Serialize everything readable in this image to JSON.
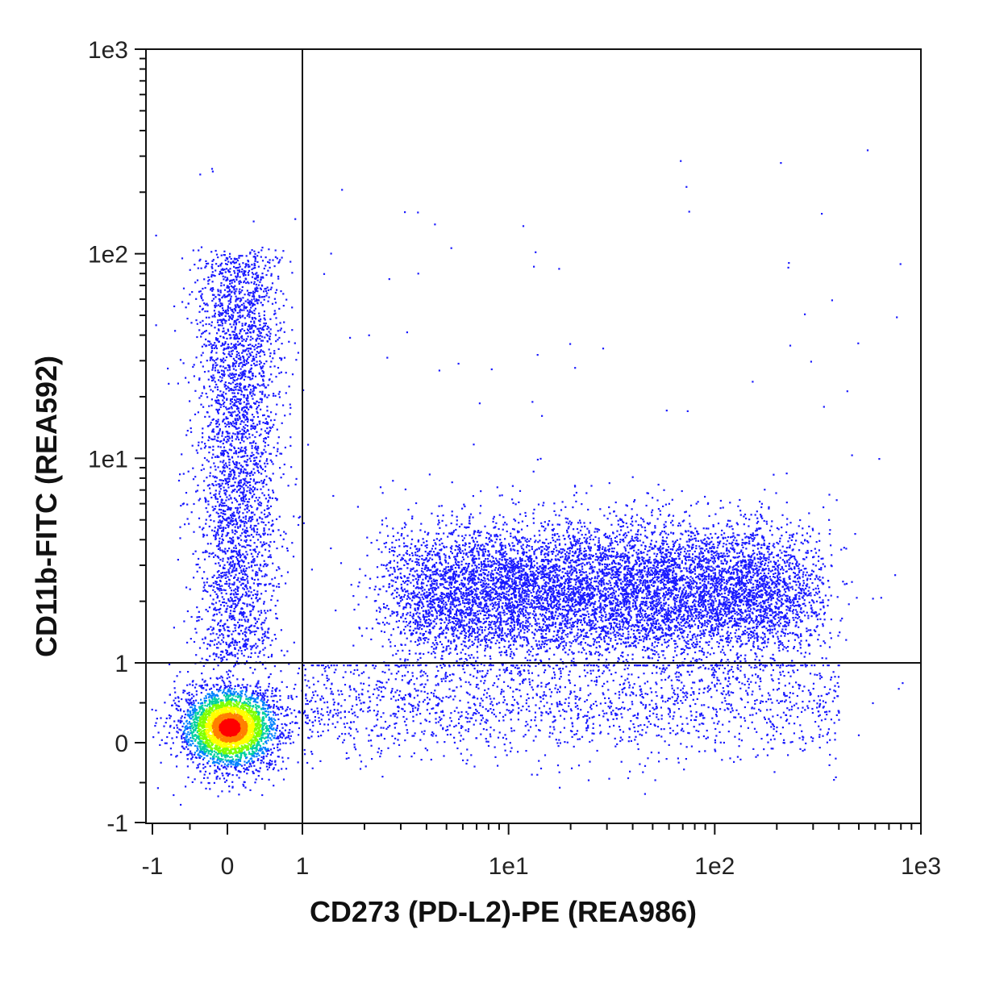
{
  "chart_data": {
    "type": "scatter",
    "plot_style": "flow-cytometry density dot plot with quadrant gates",
    "xlabel": "CD273 (PD-L2)-PE (REA986)",
    "ylabel": "CD11b-FITC (REA592)",
    "x_scale": "biexponential (linear near 0, log above 1)",
    "y_scale": "biexponential (linear near 0, log above 1)",
    "xlim": [
      -1,
      1000
    ],
    "ylim": [
      -1,
      1000
    ],
    "x_ticks": [
      {
        "value": -1,
        "label": "-1"
      },
      {
        "value": 0,
        "label": "0"
      },
      {
        "value": 1,
        "label": "1"
      },
      {
        "value": 10,
        "label": "1e1"
      },
      {
        "value": 100,
        "label": "1e2"
      },
      {
        "value": 1000,
        "label": "1e3"
      }
    ],
    "y_ticks": [
      {
        "value": -1,
        "label": "-1"
      },
      {
        "value": 0,
        "label": "0"
      },
      {
        "value": 1,
        "label": "1"
      },
      {
        "value": 10,
        "label": "1e1"
      },
      {
        "value": 100,
        "label": "1e2"
      },
      {
        "value": 1000,
        "label": "1e3"
      }
    ],
    "quadrant_gate": {
      "x": 1,
      "y": 1
    },
    "grid": false,
    "density_colors": [
      "#1a1aff",
      "#0080ff",
      "#00d0a0",
      "#7fff00",
      "#ffff00",
      "#ff8000",
      "#ff0000"
    ],
    "populations": [
      {
        "region": "CD273- CD11b- (lower-left)",
        "center_x": 0.0,
        "center_y": 0.2,
        "spread": "tight, highest density"
      },
      {
        "region": "CD273- CD11b+ (upper-left)",
        "center_x": 0.1,
        "center_y_range": [
          1,
          100
        ],
        "spread": "vertical streak"
      },
      {
        "region": "CD273+ CD11b+ (upper-right)",
        "center_x_range": [
          3,
          250
        ],
        "center_y_range": [
          1,
          5
        ],
        "spread": "broad horizontal band"
      },
      {
        "region": "CD273+ CD11b- (lower-right)",
        "center_x_range": [
          1,
          400
        ],
        "center_y_range": [
          -0.3,
          1
        ],
        "spread": "sparse"
      }
    ]
  }
}
